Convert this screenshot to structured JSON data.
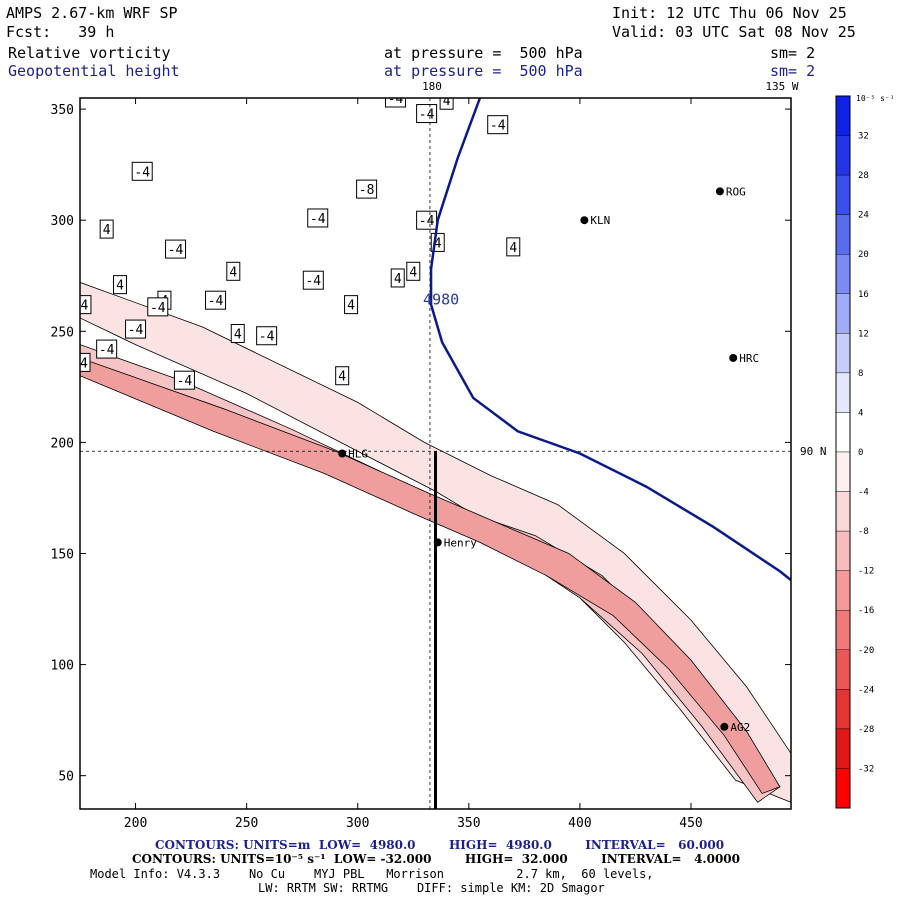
{
  "header": {
    "model": "AMPS 2.67-km WRF SP",
    "init": "Init: 12 UTC Thu 06 Nov 25",
    "fcst": "Fcst:   39 h",
    "valid": "Valid: 03 UTC Sat 08 Nov 25",
    "field1": "Relative vorticity",
    "level1": "at pressure =  500 hPa",
    "sm1": "sm= 2",
    "field2": "Geopotential height",
    "level2": "at pressure =  500 hPa",
    "sm2": "sm= 2"
  },
  "chart_data": {
    "type": "contour",
    "xlim": [
      175,
      495
    ],
    "ylim": [
      35,
      355
    ],
    "x_ticks": [
      200,
      250,
      300,
      350,
      400,
      450
    ],
    "y_ticks": [
      50,
      100,
      150,
      200,
      250,
      300,
      350
    ],
    "lon_lat_labels": {
      "lon180": "180",
      "lon135w": "135 W",
      "lat90": "90 N"
    },
    "meridian_x": 332.5,
    "pole_y": 196,
    "cross_section_line": {
      "x": 335,
      "y": [
        35,
        196
      ]
    },
    "height_contours": [
      {
        "value": "4980",
        "label": "4980",
        "points": [
          [
            355,
            355
          ],
          [
            345,
            328
          ],
          [
            336,
            300
          ],
          [
            333,
            278
          ],
          [
            333,
            262
          ],
          [
            338,
            245
          ],
          [
            352,
            220
          ],
          [
            372,
            205
          ],
          [
            400,
            195
          ],
          [
            430,
            180
          ],
          [
            460,
            162
          ],
          [
            490,
            142
          ],
          [
            495,
            138
          ]
        ]
      }
    ],
    "stations": [
      {
        "name": "KLN",
        "x": 402,
        "y": 300
      },
      {
        "name": "HRC",
        "x": 469,
        "y": 238
      },
      {
        "name": "Henry",
        "x": 336,
        "y": 155
      },
      {
        "name": "AG2",
        "x": 465,
        "y": 72
      },
      {
        "name": "HLG",
        "x": 293,
        "y": 195
      },
      {
        "name": "ROG",
        "x": 463,
        "y": 313
      }
    ],
    "colorbar": {
      "unit": "10⁻⁵ s⁻¹",
      "levels": [
        32,
        28,
        24,
        20,
        16,
        12,
        8,
        4,
        0,
        -4,
        -8,
        -12,
        -16,
        -20,
        -24,
        -28,
        -32
      ],
      "colors": [
        "#0d22e6",
        "#2236e8",
        "#3a4fec",
        "#5a6cee",
        "#7c8bf2",
        "#a0acf6",
        "#c6cdf9",
        "#e4e8fc",
        "#ffffff",
        "#fdf0f0",
        "#fbd9d9",
        "#f7bcbc",
        "#f39b9b",
        "#ee7a7a",
        "#e95757",
        "#e43535",
        "#e01818",
        "#ff0000"
      ]
    },
    "contour_labels": [
      {
        "t": "-4",
        "x": 203,
        "y": 322
      },
      {
        "t": "-8",
        "x": 304,
        "y": 314
      },
      {
        "t": "-4",
        "x": 282,
        "y": 301
      },
      {
        "t": "4",
        "x": 187,
        "y": 296
      },
      {
        "t": "-4",
        "x": 218,
        "y": 287
      },
      {
        "t": "4",
        "x": 244,
        "y": 277
      },
      {
        "t": "4",
        "x": 318,
        "y": 274
      },
      {
        "t": "4",
        "x": 193,
        "y": 271
      },
      {
        "t": "4",
        "x": 213,
        "y": 264
      },
      {
        "t": "-4",
        "x": 236,
        "y": 264
      },
      {
        "t": "4",
        "x": 177,
        "y": 262
      },
      {
        "t": "-4",
        "x": 200,
        "y": 251
      },
      {
        "t": "-4",
        "x": 210,
        "y": 261
      },
      {
        "t": "4",
        "x": 246,
        "y": 249
      },
      {
        "t": "-4",
        "x": 187,
        "y": 242
      },
      {
        "t": "-4",
        "x": 259,
        "y": 248
      },
      {
        "t": "-4",
        "x": 175,
        "y": 236
      },
      {
        "t": "-4",
        "x": 222,
        "y": 228
      },
      {
        "t": "4",
        "x": 293,
        "y": 230
      },
      {
        "t": "-4",
        "x": 159,
        "y": 236
      },
      {
        "t": "-4",
        "x": 317,
        "y": 355
      },
      {
        "t": "4",
        "x": 340,
        "y": 354
      },
      {
        "t": "-4",
        "x": 331,
        "y": 348
      },
      {
        "t": "4",
        "x": 336,
        "y": 290
      },
      {
        "t": "-4",
        "x": 363,
        "y": 343
      },
      {
        "t": "4",
        "x": 370,
        "y": 288
      },
      {
        "t": "4",
        "x": 297,
        "y": 262
      },
      {
        "t": "-4",
        "x": 280,
        "y": 273
      },
      {
        "t": "-4",
        "x": 331,
        "y": 300
      },
      {
        "t": "4",
        "x": 325,
        "y": 277
      }
    ],
    "filled_bands": [
      {
        "level": "-4",
        "color": "#fbe3e3",
        "points": [
          [
            175,
            272
          ],
          [
            230,
            252
          ],
          [
            300,
            218
          ],
          [
            330,
            200
          ],
          [
            360,
            185
          ],
          [
            390,
            172
          ],
          [
            420,
            150
          ],
          [
            450,
            120
          ],
          [
            475,
            90
          ],
          [
            495,
            60
          ],
          [
            495,
            38
          ],
          [
            470,
            48
          ],
          [
            445,
            80
          ],
          [
            420,
            110
          ],
          [
            395,
            135
          ],
          [
            365,
            160
          ],
          [
            335,
            178
          ],
          [
            300,
            196
          ],
          [
            250,
            222
          ],
          [
            200,
            244
          ],
          [
            175,
            256
          ]
        ]
      },
      {
        "level": "-8",
        "color": "#f6c4c4",
        "points": [
          [
            175,
            244
          ],
          [
            220,
            228
          ],
          [
            270,
            206
          ],
          [
            310,
            187
          ],
          [
            345,
            170
          ],
          [
            380,
            158
          ],
          [
            410,
            140
          ],
          [
            440,
            110
          ],
          [
            465,
            80
          ],
          [
            490,
            45
          ],
          [
            480,
            38
          ],
          [
            455,
            72
          ],
          [
            428,
            105
          ],
          [
            400,
            130
          ],
          [
            370,
            150
          ],
          [
            340,
            162
          ],
          [
            305,
            178
          ],
          [
            265,
            196
          ],
          [
            215,
            218
          ],
          [
            175,
            235
          ]
        ]
      },
      {
        "level": "-12",
        "color": "#f09d9d",
        "points": [
          [
            175,
            238
          ],
          [
            240,
            215
          ],
          [
            290,
            196
          ],
          [
            330,
            178
          ],
          [
            360,
            165
          ],
          [
            395,
            150
          ],
          [
            425,
            128
          ],
          [
            450,
            102
          ],
          [
            475,
            70
          ],
          [
            490,
            45
          ],
          [
            482,
            42
          ],
          [
            465,
            68
          ],
          [
            440,
            98
          ],
          [
            415,
            122
          ],
          [
            385,
            140
          ],
          [
            355,
            155
          ],
          [
            325,
            168
          ],
          [
            285,
            186
          ],
          [
            235,
            205
          ],
          [
            175,
            230
          ]
        ]
      }
    ]
  },
  "footer": {
    "line1": "CONTOURS: UNITS=m  LOW=  4980.0        HIGH=  4980.0        INTERVAL=   60.000",
    "line2": "CONTOURS: UNITS=10⁻⁵ s⁻¹  LOW= -32.000        HIGH=  32.000        INTERVAL=   4.0000",
    "line3": "Model Info: V4.3.3    No Cu    MYJ PBL   Morrison          2.7 km,  60 levels,",
    "line4": "LW: RRTM SW: RRTMG    DIFF: simple KM: 2D Smagor"
  }
}
